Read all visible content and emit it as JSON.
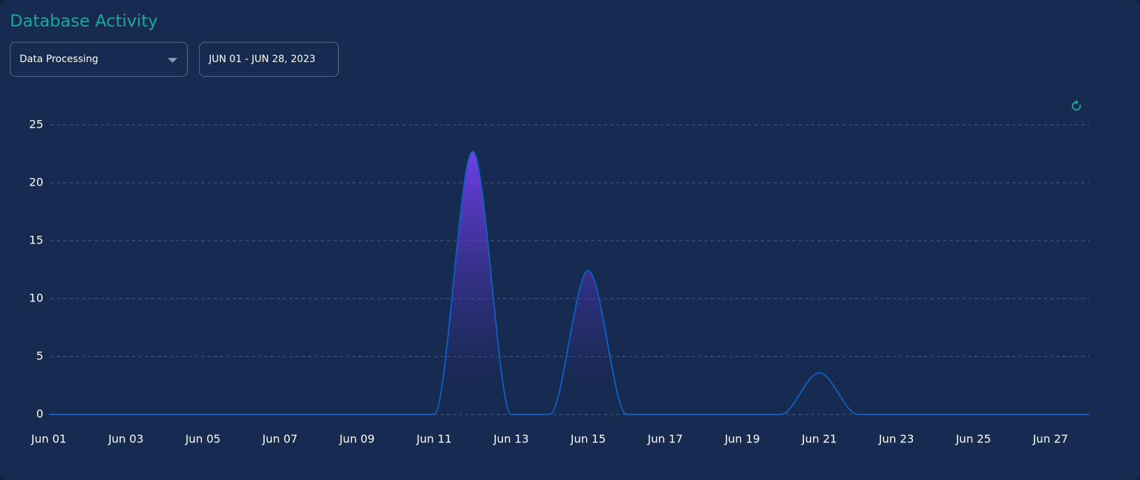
{
  "controls": {
    "dataset": "Data Processing",
    "date_range": "JUN 01 - JUN 28, 2023"
  },
  "chart_data": {
    "type": "area",
    "title": "Database Activity",
    "categories": [
      "Jun 01",
      null,
      "Jun 03",
      null,
      "Jun 05",
      null,
      "Jun 07",
      null,
      "Jun 09",
      null,
      "Jun 11",
      null,
      "Jun 13",
      null,
      "Jun 15",
      null,
      "Jun 17",
      null,
      "Jun 19",
      null,
      "Jun 21",
      null,
      "Jun 23",
      null,
      "Jun 25",
      null,
      "Jun 27",
      null
    ],
    "series": [
      {
        "name": "Data Processing",
        "color": "#0d5ec0",
        "values": [
          0,
          0,
          0,
          0,
          0,
          0,
          0,
          0,
          0,
          0,
          0,
          22.7,
          0,
          0,
          12.4,
          0,
          0,
          0,
          0,
          0,
          3.6,
          0,
          0,
          0,
          0,
          0,
          0,
          0
        ]
      }
    ],
    "ylim": [
      0,
      25
    ],
    "yticks": [
      0,
      5,
      10,
      15,
      20,
      25
    ],
    "grid": true
  }
}
